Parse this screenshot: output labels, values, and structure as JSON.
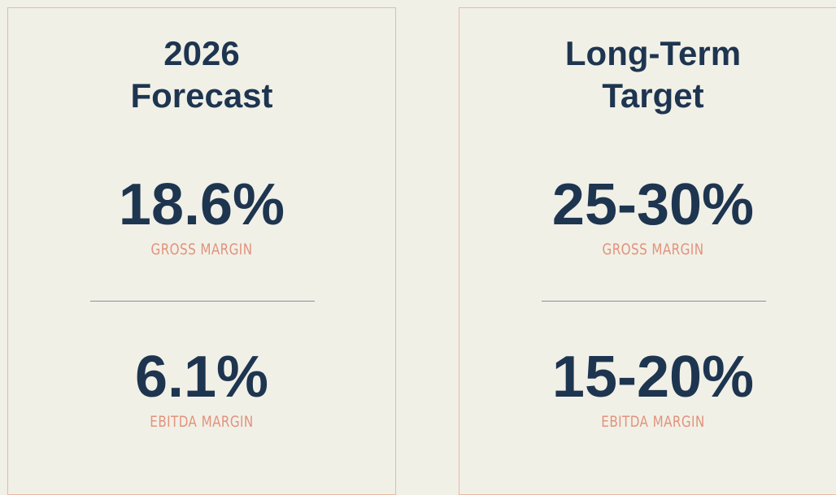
{
  "panels": [
    {
      "title": [
        "2026",
        "Forecast"
      ],
      "metrics": [
        {
          "value": "18.6%",
          "label": "GROSS MARGIN"
        },
        {
          "value": "6.1%",
          "label": "EBITDA MARGIN"
        }
      ]
    },
    {
      "title": [
        "Long-Term",
        "Target"
      ],
      "metrics": [
        {
          "value": "25-30%",
          "label": "GROSS MARGIN"
        },
        {
          "value": "15-20%",
          "label": "EBITDA MARGIN"
        }
      ]
    }
  ]
}
